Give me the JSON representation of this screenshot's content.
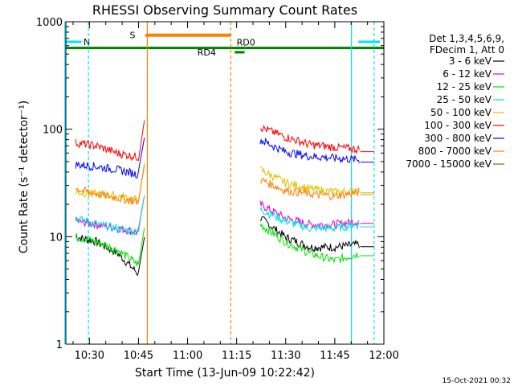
{
  "chart_data": {
    "type": "line",
    "title": "RHESSI Observing Summary Count Rates",
    "xlabel": "Start Time (13-Jun-09 10:22:42)",
    "ylabel": "Count Rate (s⁻¹ detector⁻¹)",
    "y_scale": "log",
    "ylim": [
      1,
      1000
    ],
    "xlim_minutes": [
      10.38,
      12.0
    ],
    "x_tick_labels": [
      "10:30",
      "10:45",
      "11:00",
      "11:15",
      "11:30",
      "11:45",
      "12:00"
    ],
    "y_tick_labels": [
      "1",
      "10",
      "100",
      "1000"
    ],
    "legend_header": [
      "Det 1,3,4,5,6,9,",
      "FDecim 1, Att 0"
    ],
    "legend_position": "right",
    "footer_date": "15-Oct-2021 00:32",
    "series": [
      {
        "name": "3 - 6 keV",
        "color": "#000000",
        "pre": [
          10,
          9,
          7,
          4.5
        ],
        "post": [
          15,
          10,
          8,
          8,
          8.5
        ]
      },
      {
        "name": "6 - 12 keV",
        "color": "#e000e0",
        "pre": [
          14,
          13,
          12,
          11
        ],
        "post": [
          20,
          15,
          13,
          13,
          14
        ]
      },
      {
        "name": "12 - 25 keV",
        "color": "#00e000",
        "pre": [
          10,
          9,
          7.5,
          5.5
        ],
        "post": [
          13,
          9,
          7,
          6,
          7
        ]
      },
      {
        "name": "25 - 50 keV",
        "color": "#00e0e0",
        "pre": [
          15,
          13,
          12,
          11
        ],
        "post": [
          18,
          14,
          12,
          12,
          13
        ]
      },
      {
        "name": "50 - 100 keV",
        "color": "#e0c000",
        "pre": [
          26,
          25,
          24,
          22
        ],
        "post": [
          42,
          32,
          28,
          26,
          27
        ]
      },
      {
        "name": "100 - 300 keV",
        "color": "#ff0000",
        "pre": [
          75,
          70,
          60,
          55
        ],
        "post": [
          105,
          85,
          72,
          68,
          65
        ]
      },
      {
        "name": "300 - 800 keV",
        "color": "#0000ff",
        "pre": [
          47,
          45,
          42,
          38
        ],
        "post": [
          80,
          62,
          56,
          54,
          52
        ]
      },
      {
        "name": "800 - 7000 keV",
        "color": "#ff8000",
        "pre": [
          28,
          25,
          23,
          21
        ],
        "post": [
          34,
          27,
          25,
          24,
          26
        ]
      },
      {
        "name": "7000 - 15000 keV",
        "color": "#a06000",
        "pre": [],
        "post": []
      }
    ],
    "flags": [
      {
        "label": "N",
        "color": "#00e0ff",
        "y": 650
      },
      {
        "label": "S",
        "color": "#ff8000",
        "y": 750
      },
      {
        "label": "RD4",
        "color": "#008000",
        "y": 520
      },
      {
        "label": "RD0",
        "color": "#008000",
        "y": 570
      }
    ]
  }
}
